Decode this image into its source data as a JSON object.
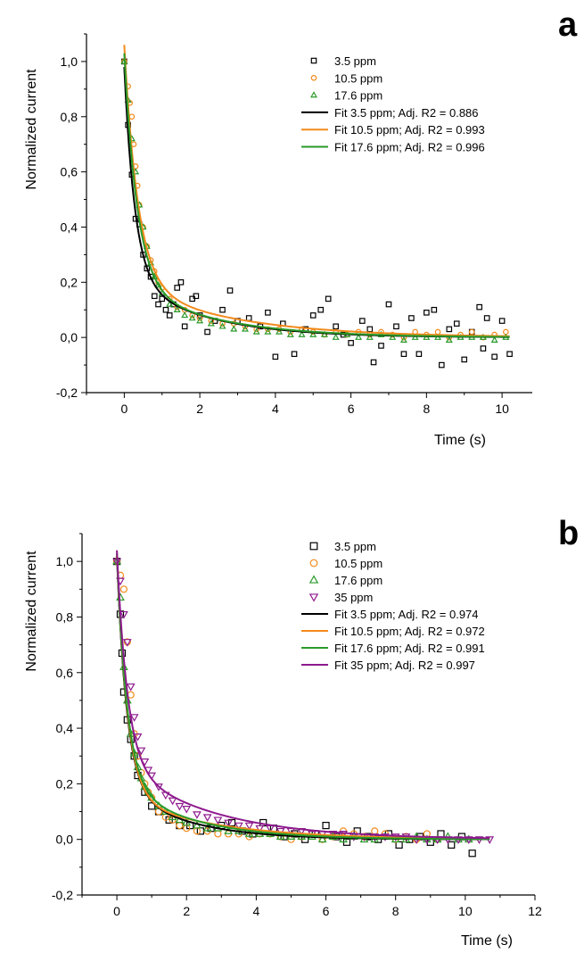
{
  "chart_data": [
    {
      "panel": "a",
      "type": "scatter",
      "xlabel": "Time (s)",
      "ylabel": "Normalized current",
      "xlim": [
        -1,
        10.8
      ],
      "ylim": [
        -0.2,
        1.1
      ],
      "xticks": [
        0,
        2,
        4,
        6,
        8,
        10
      ],
      "xtick_labels": [
        "0",
        "2",
        "4",
        "6",
        "8",
        "10"
      ],
      "yticks": [
        -0.2,
        0.0,
        0.2,
        0.4,
        0.6,
        0.8,
        1.0
      ],
      "ytick_labels": [
        "-0,2",
        "0,0",
        "0,2",
        "0,4",
        "0,6",
        "0,8",
        "1,0"
      ],
      "legend_position": "top-right",
      "scatter_series": [
        {
          "name": "3.5 ppm",
          "marker": "square",
          "color": "#000000",
          "x": [
            0.0,
            0.1,
            0.2,
            0.3,
            0.4,
            0.5,
            0.6,
            0.7,
            0.8,
            0.9,
            1.0,
            1.1,
            1.2,
            1.3,
            1.4,
            1.5,
            1.6,
            1.8,
            1.9,
            2.0,
            2.2,
            2.4,
            2.6,
            2.8,
            3.0,
            3.3,
            3.6,
            3.8,
            4.0,
            4.2,
            4.5,
            4.8,
            5.0,
            5.2,
            5.4,
            5.6,
            5.8,
            6.0,
            6.3,
            6.5,
            6.6,
            6.8,
            7.0,
            7.2,
            7.4,
            7.6,
            7.8,
            8.0,
            8.2,
            8.4,
            8.6,
            8.8,
            9.0,
            9.2,
            9.4,
            9.5,
            9.6,
            9.8,
            10.0,
            10.2
          ],
          "y": [
            1.0,
            0.77,
            0.59,
            0.43,
            0.41,
            0.3,
            0.25,
            0.22,
            0.15,
            0.12,
            0.14,
            0.1,
            0.08,
            0.12,
            0.18,
            0.2,
            0.04,
            0.14,
            0.15,
            0.08,
            0.02,
            0.06,
            0.1,
            0.17,
            0.06,
            0.07,
            0.04,
            0.09,
            -0.07,
            0.05,
            -0.06,
            0.03,
            0.08,
            0.1,
            0.14,
            0.04,
            0.01,
            -0.02,
            0.06,
            0.03,
            -0.09,
            -0.03,
            0.12,
            0.04,
            -0.06,
            0.07,
            -0.06,
            0.09,
            0.1,
            -0.1,
            0.03,
            0.05,
            -0.08,
            0.02,
            0.11,
            -0.04,
            0.07,
            -0.07,
            0.06,
            -0.06
          ]
        },
        {
          "name": "10.5 ppm",
          "marker": "circle",
          "color": "#f28a1c",
          "x": [
            0.0,
            0.1,
            0.15,
            0.2,
            0.25,
            0.3,
            0.35,
            0.4,
            0.5,
            0.6,
            0.7,
            0.8,
            0.9,
            1.0,
            1.2,
            1.4,
            1.6,
            1.8,
            2.0,
            2.3,
            2.6,
            2.9,
            3.2,
            3.5,
            3.8,
            4.1,
            4.4,
            4.7,
            5.0,
            5.3,
            5.6,
            5.9,
            6.2,
            6.5,
            6.8,
            7.1,
            7.4,
            7.7,
            8.0,
            8.3,
            8.6,
            8.9,
            9.2,
            9.5,
            9.8,
            10.1
          ],
          "y": [
            1.0,
            0.91,
            0.85,
            0.8,
            0.7,
            0.62,
            0.55,
            0.48,
            0.4,
            0.33,
            0.28,
            0.24,
            0.2,
            0.18,
            0.14,
            0.11,
            0.1,
            0.08,
            0.07,
            0.06,
            0.05,
            0.05,
            0.04,
            0.03,
            0.03,
            0.03,
            0.02,
            0.03,
            0.02,
            0.01,
            0.02,
            0.01,
            0.02,
            0.01,
            0.02,
            0.01,
            0.0,
            0.02,
            0.01,
            0.02,
            0.0,
            0.01,
            0.02,
            0.0,
            0.01,
            0.02
          ]
        },
        {
          "name": "17.6 ppm",
          "marker": "triangle-up",
          "color": "#2a9a2a",
          "x": [
            0.0,
            0.1,
            0.2,
            0.3,
            0.4,
            0.5,
            0.6,
            0.7,
            0.8,
            0.9,
            1.0,
            1.2,
            1.4,
            1.6,
            1.8,
            2.0,
            2.3,
            2.6,
            2.9,
            3.2,
            3.5,
            3.8,
            4.1,
            4.4,
            4.7,
            5.0,
            5.3,
            5.6,
            5.9,
            6.2,
            6.5,
            6.8,
            7.1,
            7.4,
            7.7,
            8.0,
            8.3,
            8.6,
            8.9,
            9.2,
            9.5,
            9.8,
            10.1
          ],
          "y": [
            1.0,
            0.86,
            0.72,
            0.6,
            0.48,
            0.4,
            0.33,
            0.27,
            0.22,
            0.19,
            0.16,
            0.12,
            0.1,
            0.08,
            0.07,
            0.06,
            0.05,
            0.04,
            0.03,
            0.03,
            0.02,
            0.02,
            0.02,
            0.01,
            0.01,
            0.01,
            0.01,
            0.0,
            0.01,
            0.0,
            0.0,
            0.01,
            0.0,
            -0.01,
            0.0,
            0.0,
            0.0,
            -0.01,
            0.0,
            0.0,
            0.0,
            -0.01,
            0.0
          ]
        }
      ],
      "fit_series": [
        {
          "name": "Fit 3.5 ppm; Adj. R2 = 0.886",
          "color": "#000000",
          "a1": 0.76,
          "t1": 0.28,
          "a2": 0.22,
          "t2": 2.0
        },
        {
          "name": "Fit 10.5 ppm; Adj. R2 = 0.993",
          "color": "#f28a1c",
          "a1": 0.86,
          "t1": 0.36,
          "a2": 0.2,
          "t2": 2.7
        },
        {
          "name": "Fit 17.6 ppm; Adj. R2 = 0.996",
          "color": "#2a9a2a",
          "a1": 0.83,
          "t1": 0.34,
          "a2": 0.2,
          "t2": 2.2
        }
      ]
    },
    {
      "panel": "b",
      "type": "scatter",
      "xlabel": "Time (s)",
      "ylabel": "Normalized current",
      "xlim": [
        -1,
        12
      ],
      "ylim": [
        -0.2,
        1.1
      ],
      "xticks": [
        0,
        2,
        4,
        6,
        8,
        10,
        12
      ],
      "xtick_labels": [
        "0",
        "2",
        "4",
        "6",
        "8",
        "10",
        "12"
      ],
      "yticks": [
        -0.2,
        0.0,
        0.2,
        0.4,
        0.6,
        0.8,
        1.0
      ],
      "ytick_labels": [
        "-0,2",
        "0,0",
        "0,2",
        "0,4",
        "0,6",
        "0,8",
        "1,0"
      ],
      "legend_position": "top-right",
      "scatter_series": [
        {
          "name": "3.5 ppm",
          "marker": "square",
          "color": "#000000",
          "x": [
            0.0,
            0.1,
            0.15,
            0.2,
            0.3,
            0.4,
            0.5,
            0.6,
            0.8,
            1.0,
            1.2,
            1.5,
            1.8,
            2.1,
            2.4,
            2.7,
            3.0,
            3.3,
            3.6,
            3.9,
            4.2,
            4.5,
            4.8,
            5.1,
            5.4,
            5.7,
            6.0,
            6.3,
            6.6,
            6.9,
            7.2,
            7.5,
            7.8,
            8.1,
            8.4,
            8.7,
            9.0,
            9.3,
            9.6,
            9.9,
            10.2
          ],
          "y": [
            1.0,
            0.81,
            0.67,
            0.53,
            0.43,
            0.36,
            0.3,
            0.23,
            0.17,
            0.12,
            0.1,
            0.07,
            0.05,
            0.05,
            0.03,
            0.04,
            0.05,
            0.06,
            0.03,
            0.02,
            0.06,
            0.04,
            0.01,
            0.02,
            0.0,
            0.02,
            0.05,
            0.01,
            -0.01,
            0.03,
            0.01,
            0.0,
            0.02,
            -0.02,
            0.0,
            0.01,
            -0.01,
            0.02,
            -0.02,
            0.01,
            -0.05
          ]
        },
        {
          "name": "10.5 ppm",
          "marker": "circle",
          "color": "#f28a1c",
          "x": [
            0.0,
            0.1,
            0.2,
            0.3,
            0.4,
            0.5,
            0.6,
            0.7,
            0.8,
            0.9,
            1.0,
            1.2,
            1.4,
            1.6,
            1.8,
            2.0,
            2.3,
            2.6,
            2.9,
            3.2,
            3.5,
            3.8,
            4.1,
            4.4,
            4.7,
            5.0,
            5.3,
            5.6,
            5.9,
            6.2,
            6.5,
            6.8,
            7.1,
            7.4,
            7.7,
            8.0,
            8.3,
            8.6,
            8.9,
            9.2
          ],
          "y": [
            1.0,
            0.95,
            0.9,
            0.71,
            0.52,
            0.38,
            0.3,
            0.24,
            0.2,
            0.17,
            0.15,
            0.1,
            0.08,
            0.07,
            0.05,
            0.04,
            0.03,
            0.03,
            0.02,
            0.02,
            0.02,
            0.01,
            0.02,
            0.02,
            0.01,
            0.0,
            0.01,
            0.02,
            0.0,
            0.01,
            0.03,
            0.02,
            0.01,
            0.03,
            0.02,
            0.0,
            0.01,
            0.0,
            0.02,
            0.0
          ]
        },
        {
          "name": "17.6 ppm",
          "marker": "triangle-up",
          "color": "#2a9a2a",
          "x": [
            0.0,
            0.1,
            0.2,
            0.3,
            0.4,
            0.5,
            0.6,
            0.7,
            0.8,
            0.9,
            1.0,
            1.2,
            1.4,
            1.6,
            1.8,
            2.0,
            2.3,
            2.6,
            2.9,
            3.2,
            3.5,
            3.8,
            4.1,
            4.4,
            4.7,
            5.0,
            5.3,
            5.6,
            5.9,
            6.2,
            6.5,
            6.8,
            7.1,
            7.4,
            7.7,
            8.0,
            8.3,
            8.6,
            8.9,
            9.2,
            9.5,
            9.8,
            10.1
          ],
          "y": [
            1.0,
            0.87,
            0.62,
            0.5,
            0.38,
            0.31,
            0.26,
            0.22,
            0.19,
            0.17,
            0.15,
            0.12,
            0.1,
            0.08,
            0.07,
            0.06,
            0.05,
            0.04,
            0.04,
            0.03,
            0.03,
            0.02,
            0.02,
            0.02,
            0.01,
            0.01,
            0.01,
            0.01,
            0.0,
            0.01,
            0.0,
            0.01,
            0.0,
            0.0,
            0.01,
            0.0,
            0.0,
            0.01,
            0.0,
            0.0,
            0.01,
            0.0,
            0.0
          ]
        },
        {
          "name": "35 ppm",
          "marker": "triangle-down",
          "color": "#8e1a8e",
          "x": [
            0.0,
            0.1,
            0.2,
            0.3,
            0.4,
            0.5,
            0.6,
            0.7,
            0.8,
            0.9,
            1.0,
            1.2,
            1.4,
            1.6,
            1.8,
            2.0,
            2.3,
            2.6,
            2.9,
            3.2,
            3.5,
            3.8,
            4.1,
            4.4,
            4.7,
            5.0,
            5.3,
            5.6,
            5.9,
            6.2,
            6.5,
            6.8,
            7.1,
            7.4,
            7.7,
            8.0,
            8.3,
            8.6,
            8.9,
            9.2,
            9.5,
            9.8,
            10.1,
            10.4,
            10.7
          ],
          "y": [
            1.0,
            0.93,
            0.81,
            0.71,
            0.55,
            0.44,
            0.37,
            0.32,
            0.28,
            0.25,
            0.23,
            0.19,
            0.16,
            0.14,
            0.12,
            0.11,
            0.09,
            0.08,
            0.07,
            0.06,
            0.05,
            0.05,
            0.04,
            0.04,
            0.03,
            0.03,
            0.03,
            0.02,
            0.02,
            0.02,
            0.02,
            0.01,
            0.01,
            0.01,
            0.01,
            0.01,
            0.01,
            0.0,
            0.0,
            0.0,
            0.0,
            0.0,
            0.0,
            0.0,
            0.0
          ]
        }
      ],
      "fit_series": [
        {
          "name": "Fit 3.5 ppm; Adj. R2 = 0.974",
          "color": "#000000",
          "a1": 0.82,
          "t1": 0.28,
          "a2": 0.2,
          "t2": 1.8
        },
        {
          "name": "Fit 10.5 ppm; Adj. R2 = 0.972",
          "color": "#f28a1c",
          "a1": 0.87,
          "t1": 0.3,
          "a2": 0.16,
          "t2": 2.6
        },
        {
          "name": "Fit 17.6 ppm; Adj. R2 = 0.991",
          "color": "#2a9a2a",
          "a1": 0.82,
          "t1": 0.29,
          "a2": 0.21,
          "t2": 2.0
        },
        {
          "name": "Fit 35 ppm; Adj. R2 = 0.997",
          "color": "#8e1a8e",
          "a1": 0.76,
          "t1": 0.3,
          "a2": 0.28,
          "t2": 2.6
        }
      ]
    }
  ]
}
